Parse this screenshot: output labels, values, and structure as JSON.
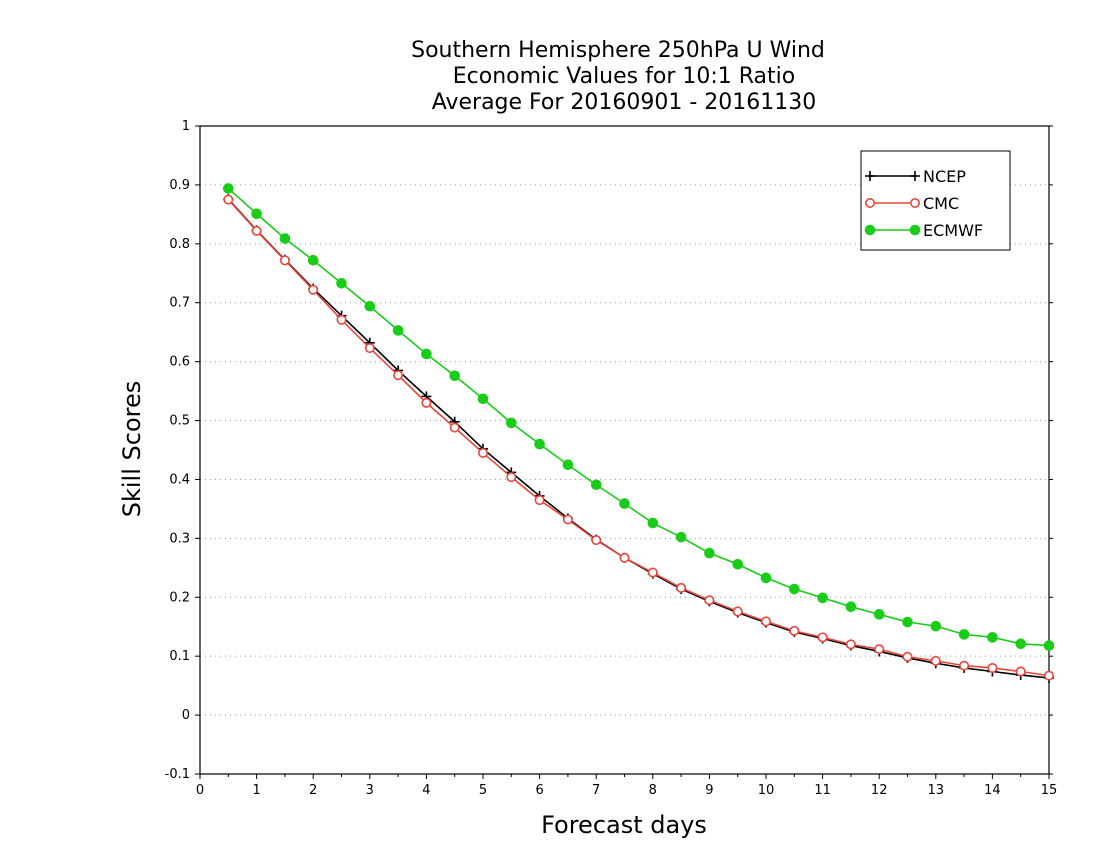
{
  "chart_data": {
    "type": "line",
    "title": [
      "Southern Hemisphere 250hPa U Wind",
      "Economic Values for 10:1 Ratio",
      "Average For 20160901 - 20161130"
    ],
    "xlabel": "Forecast days",
    "ylabel": "Skill Scores",
    "xlim": [
      0,
      15
    ],
    "ylim": [
      -0.1,
      1
    ],
    "xticks": [
      0,
      1,
      2,
      3,
      4,
      5,
      6,
      7,
      8,
      9,
      10,
      11,
      12,
      13,
      14,
      15
    ],
    "yticks": [
      -0.1,
      0,
      0.1,
      0.2,
      0.3,
      0.4,
      0.5,
      0.6,
      0.7,
      0.8,
      0.9,
      1
    ],
    "ytick_labels": [
      "-0.1",
      "0",
      "0.1",
      "0.2",
      "0.3",
      "0.4",
      "0.5",
      "0.6",
      "0.7",
      "0.8",
      "0.9",
      "1"
    ],
    "grid": "horizontal dotted",
    "legend_position": "top-right",
    "x": [
      0.5,
      1,
      1.5,
      2,
      2.5,
      3,
      3.5,
      4,
      4.5,
      5,
      5.5,
      6,
      6.5,
      7,
      7.5,
      8,
      8.5,
      9,
      9.5,
      10,
      10.5,
      11,
      11.5,
      12,
      12.5,
      13,
      13.5,
      14,
      14.5,
      15
    ],
    "series": [
      {
        "name": "NCEP",
        "color": "#000000",
        "marker": "plus",
        "values": [
          0.876,
          0.823,
          0.773,
          0.724,
          0.678,
          0.632,
          0.585,
          0.541,
          0.498,
          0.452,
          0.412,
          0.372,
          0.334,
          0.298,
          0.267,
          0.24,
          0.214,
          0.193,
          0.174,
          0.157,
          0.141,
          0.13,
          0.118,
          0.108,
          0.097,
          0.088,
          0.08,
          0.074,
          0.068,
          0.063
        ]
      },
      {
        "name": "CMC",
        "color": "#e8463c",
        "marker": "open-circle",
        "values": [
          0.875,
          0.822,
          0.772,
          0.722,
          0.671,
          0.623,
          0.577,
          0.53,
          0.488,
          0.445,
          0.404,
          0.365,
          0.332,
          0.297,
          0.267,
          0.242,
          0.216,
          0.195,
          0.176,
          0.159,
          0.143,
          0.132,
          0.12,
          0.112,
          0.099,
          0.092,
          0.084,
          0.08,
          0.074,
          0.067
        ]
      },
      {
        "name": "ECMWF",
        "color": "#18cc18",
        "marker": "filled-circle",
        "values": [
          0.894,
          0.851,
          0.809,
          0.772,
          0.733,
          0.694,
          0.653,
          0.613,
          0.576,
          0.537,
          0.496,
          0.46,
          0.425,
          0.391,
          0.359,
          0.326,
          0.302,
          0.275,
          0.256,
          0.233,
          0.214,
          0.199,
          0.184,
          0.171,
          0.158,
          0.151,
          0.137,
          0.132,
          0.121,
          0.118
        ]
      }
    ]
  }
}
